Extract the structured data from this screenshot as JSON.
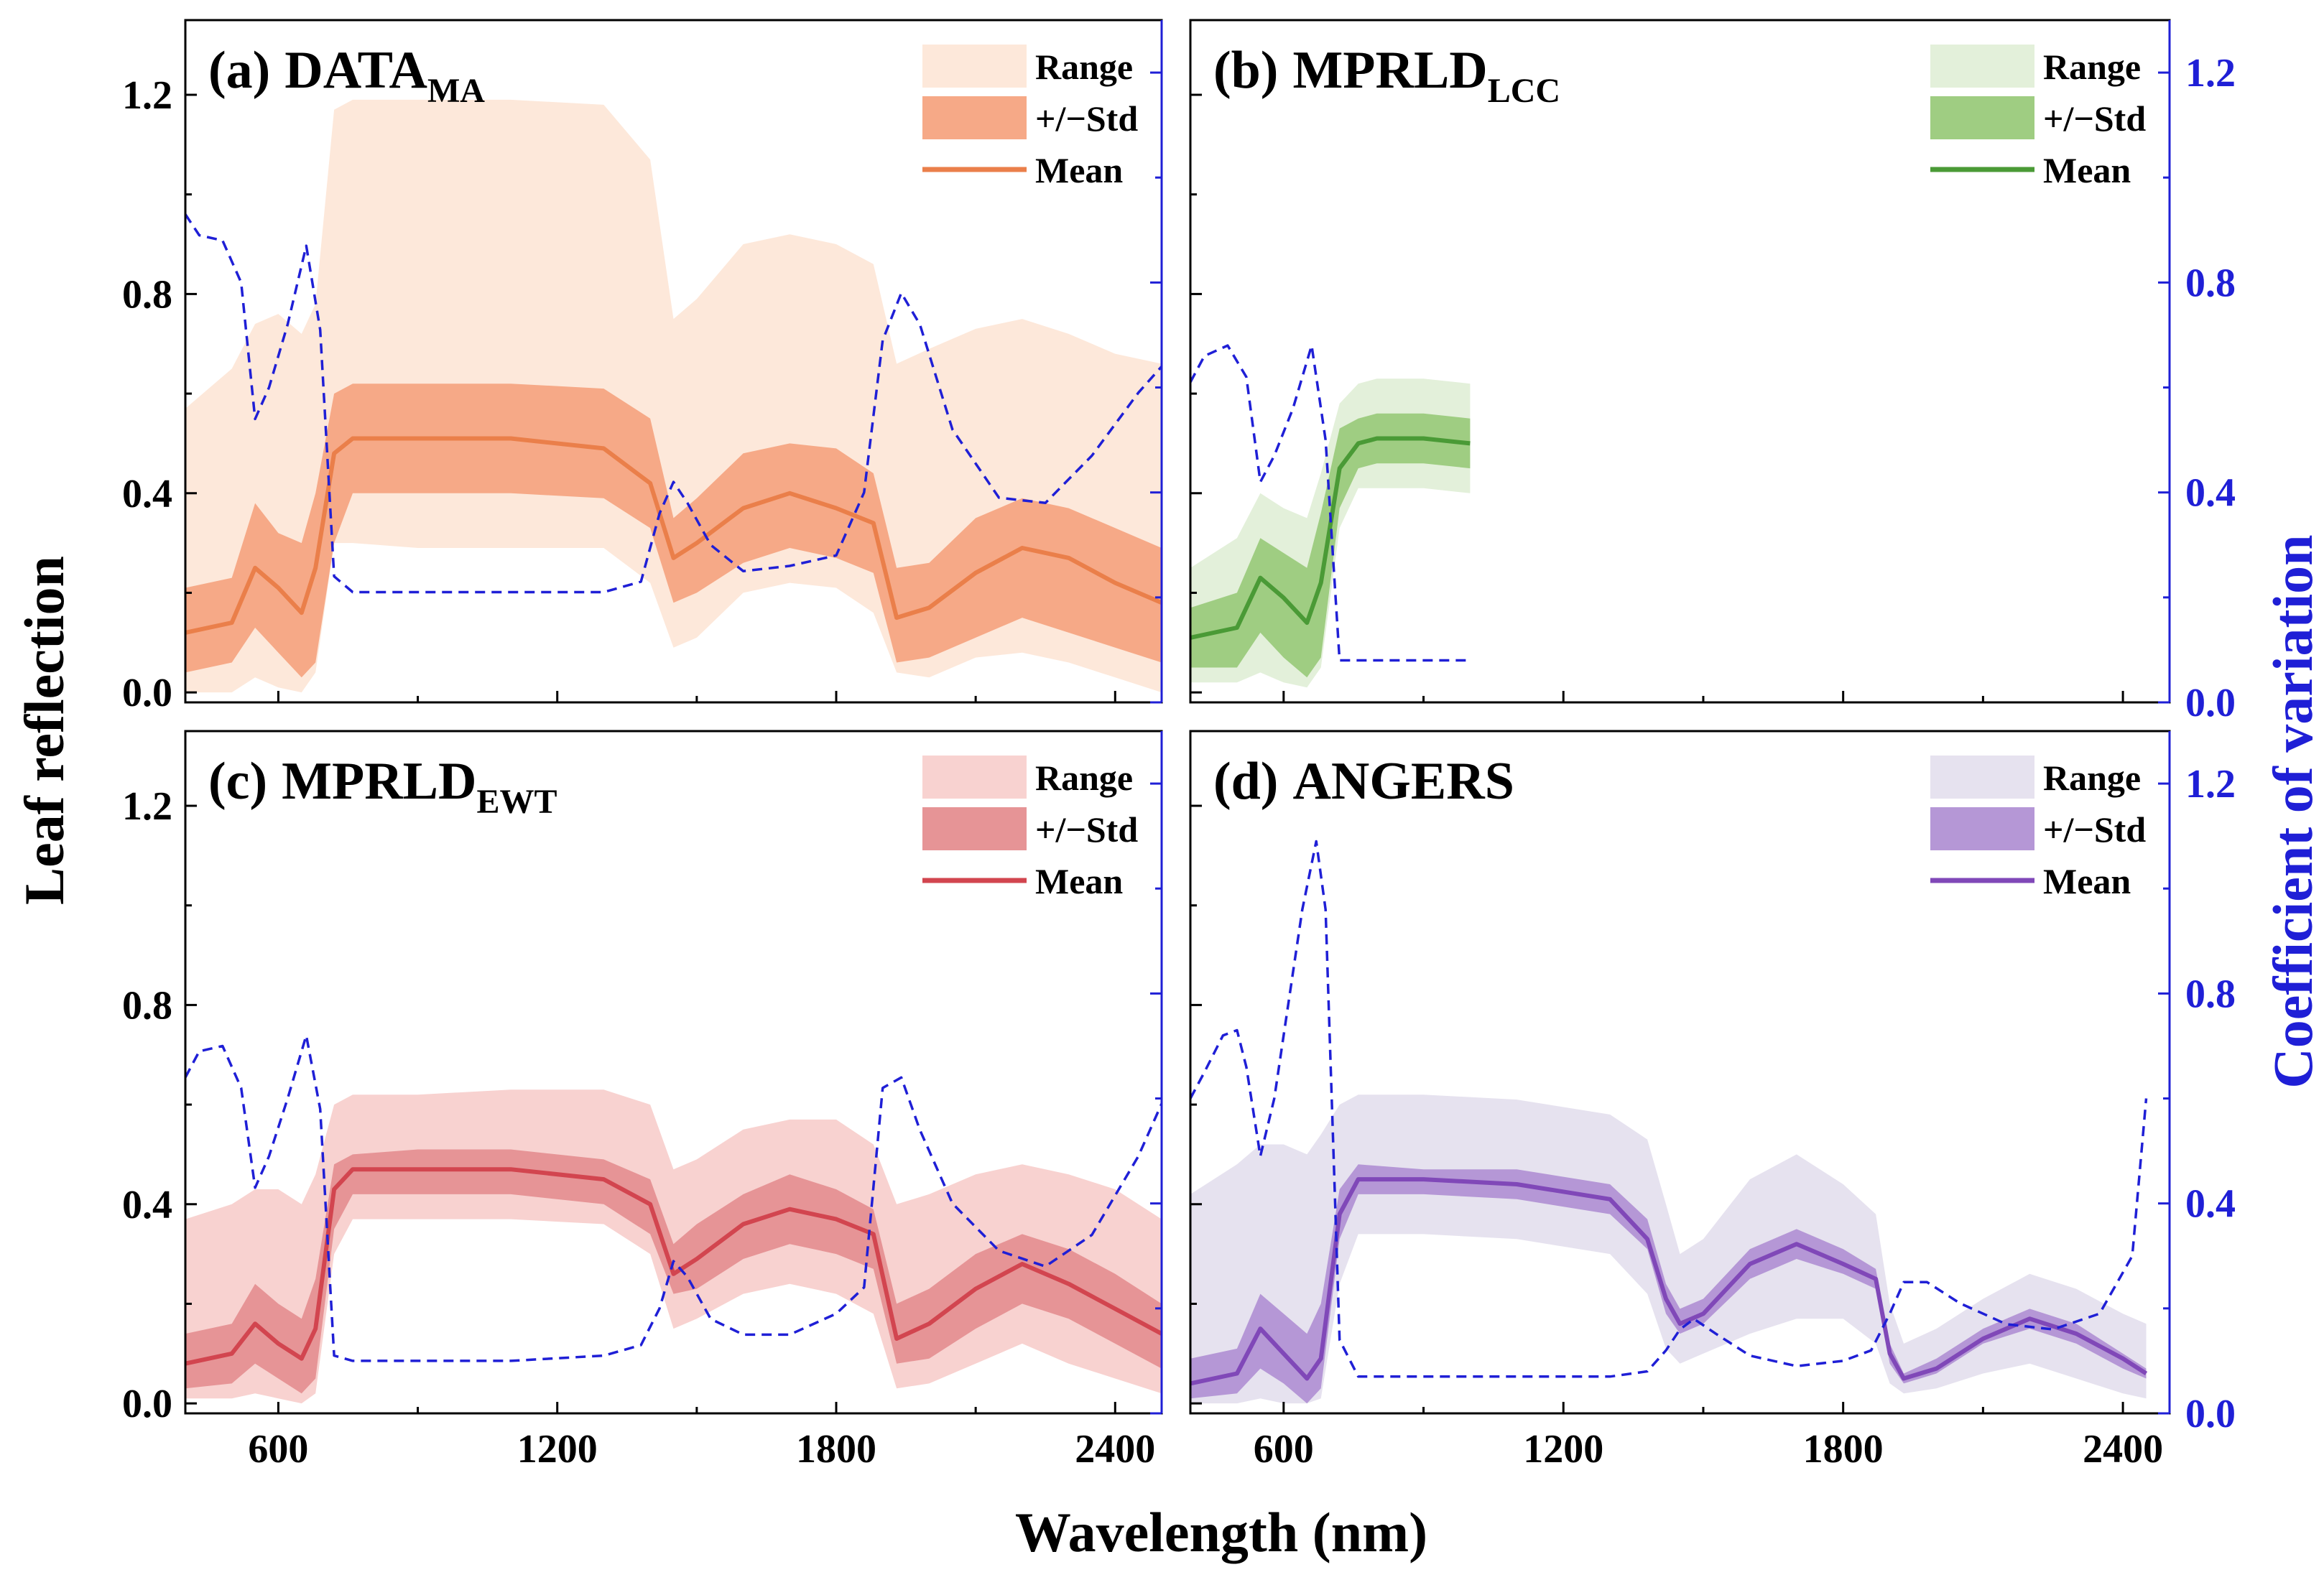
{
  "chart_data": {
    "type": "area",
    "xlabel": "Wavelength (nm)",
    "ylabel": "Leaf reflection",
    "ylabel_right": "Coefficient of variation",
    "xlim": [
      400,
      2500
    ],
    "ylim": [
      -0.02,
      1.35
    ],
    "ylim_right": [
      0,
      1.3
    ],
    "x_ticks": [
      600,
      1200,
      1800,
      2400
    ],
    "x_tick_labels": [
      "600",
      "1200",
      "1800",
      "2400"
    ],
    "y_ticks": [
      0.0,
      0.4,
      0.8,
      1.2
    ],
    "y_tick_labels": [
      "0.0",
      "0.4",
      "0.8",
      "1.2"
    ],
    "y_right_ticks": [
      0.0,
      0.4,
      0.8,
      1.2
    ],
    "y_right_tick_labels": [
      "0.0",
      "0.4",
      "0.8",
      "1.2"
    ],
    "legend_labels": [
      "Range",
      "+/−Std",
      "Mean"
    ],
    "cv_color": "#1f1fd6",
    "panels": [
      {
        "id": "a",
        "letter": "(a)",
        "name": "DATA",
        "subscript": "MA",
        "range_color": "#fde8da",
        "std_color": "#f6a987",
        "mean_color": "#ea7f4a",
        "x": [
          400,
          500,
          550,
          600,
          650,
          680,
          720,
          760,
          900,
          1100,
          1300,
          1400,
          1450,
          1500,
          1600,
          1700,
          1800,
          1880,
          1930,
          2000,
          2100,
          2200,
          2300,
          2400,
          2500
        ],
        "mean": [
          0.12,
          0.14,
          0.25,
          0.21,
          0.16,
          0.25,
          0.48,
          0.51,
          0.51,
          0.51,
          0.49,
          0.42,
          0.27,
          0.3,
          0.37,
          0.4,
          0.37,
          0.34,
          0.15,
          0.17,
          0.24,
          0.29,
          0.27,
          0.22,
          0.18
        ],
        "std_lo": [
          0.04,
          0.06,
          0.13,
          0.08,
          0.03,
          0.06,
          0.3,
          0.4,
          0.4,
          0.4,
          0.39,
          0.33,
          0.18,
          0.2,
          0.26,
          0.29,
          0.27,
          0.24,
          0.06,
          0.07,
          0.11,
          0.15,
          0.12,
          0.09,
          0.06
        ],
        "std_hi": [
          0.21,
          0.23,
          0.38,
          0.32,
          0.3,
          0.4,
          0.6,
          0.62,
          0.62,
          0.62,
          0.61,
          0.55,
          0.35,
          0.39,
          0.48,
          0.5,
          0.49,
          0.44,
          0.25,
          0.26,
          0.35,
          0.39,
          0.37,
          0.33,
          0.29
        ],
        "range_lo": [
          0.0,
          0.0,
          0.03,
          0.01,
          0.0,
          0.04,
          0.3,
          0.3,
          0.29,
          0.29,
          0.29,
          0.22,
          0.09,
          0.11,
          0.2,
          0.22,
          0.21,
          0.16,
          0.04,
          0.03,
          0.07,
          0.08,
          0.06,
          0.03,
          0.0
        ],
        "range_hi": [
          0.57,
          0.65,
          0.74,
          0.76,
          0.72,
          0.78,
          1.17,
          1.19,
          1.19,
          1.19,
          1.18,
          1.07,
          0.75,
          0.79,
          0.9,
          0.92,
          0.9,
          0.86,
          0.66,
          0.69,
          0.73,
          0.75,
          0.72,
          0.68,
          0.66
        ],
        "cv_x": [
          400,
          430,
          480,
          520,
          550,
          580,
          620,
          660,
          690,
          720,
          760,
          900,
          1100,
          1300,
          1380,
          1420,
          1450,
          1480,
          1530,
          1600,
          1700,
          1800,
          1860,
          1900,
          1940,
          1980,
          2050,
          2150,
          2250,
          2350,
          2450,
          2500
        ],
        "cv": [
          0.93,
          0.89,
          0.88,
          0.8,
          0.54,
          0.6,
          0.72,
          0.87,
          0.71,
          0.24,
          0.21,
          0.21,
          0.21,
          0.21,
          0.23,
          0.36,
          0.42,
          0.38,
          0.3,
          0.25,
          0.26,
          0.28,
          0.4,
          0.69,
          0.78,
          0.72,
          0.52,
          0.39,
          0.38,
          0.47,
          0.59,
          0.64
        ]
      },
      {
        "id": "b",
        "letter": "(b)",
        "name": "MPRLD",
        "subscript": "LCC",
        "range_color": "#e3f0da",
        "std_color": "#9fcd82",
        "mean_color": "#4a9a36",
        "x": [
          400,
          500,
          550,
          600,
          650,
          680,
          720,
          760,
          800,
          900,
          1000
        ],
        "mean": [
          0.11,
          0.13,
          0.23,
          0.19,
          0.14,
          0.22,
          0.45,
          0.5,
          0.51,
          0.51,
          0.5
        ],
        "std_lo": [
          0.05,
          0.05,
          0.12,
          0.07,
          0.03,
          0.07,
          0.37,
          0.45,
          0.46,
          0.46,
          0.45
        ],
        "std_hi": [
          0.17,
          0.2,
          0.31,
          0.28,
          0.25,
          0.36,
          0.53,
          0.55,
          0.56,
          0.56,
          0.55
        ],
        "range_lo": [
          0.02,
          0.02,
          0.04,
          0.02,
          0.01,
          0.05,
          0.33,
          0.41,
          0.41,
          0.41,
          0.4
        ],
        "range_hi": [
          0.25,
          0.31,
          0.4,
          0.37,
          0.35,
          0.44,
          0.58,
          0.62,
          0.63,
          0.63,
          0.62
        ],
        "cv_x": [
          400,
          430,
          480,
          520,
          550,
          580,
          620,
          660,
          690,
          720,
          760,
          1000
        ],
        "cv": [
          0.61,
          0.66,
          0.68,
          0.62,
          0.42,
          0.47,
          0.56,
          0.68,
          0.5,
          0.08,
          0.08,
          0.08
        ]
      },
      {
        "id": "c",
        "letter": "(c)",
        "name": "MPRLD",
        "subscript": "EWT",
        "range_color": "#f8d2d0",
        "std_color": "#e69496",
        "mean_color": "#d2454f",
        "x": [
          400,
          500,
          550,
          600,
          650,
          680,
          720,
          760,
          900,
          1100,
          1300,
          1400,
          1450,
          1500,
          1600,
          1700,
          1800,
          1880,
          1930,
          2000,
          2100,
          2200,
          2300,
          2400,
          2500
        ],
        "mean": [
          0.08,
          0.1,
          0.16,
          0.12,
          0.09,
          0.15,
          0.43,
          0.47,
          0.47,
          0.47,
          0.45,
          0.4,
          0.26,
          0.29,
          0.36,
          0.39,
          0.37,
          0.34,
          0.13,
          0.16,
          0.23,
          0.28,
          0.24,
          0.19,
          0.14
        ],
        "std_lo": [
          0.03,
          0.04,
          0.08,
          0.05,
          0.02,
          0.05,
          0.35,
          0.42,
          0.42,
          0.42,
          0.4,
          0.34,
          0.22,
          0.23,
          0.29,
          0.32,
          0.3,
          0.27,
          0.08,
          0.09,
          0.15,
          0.2,
          0.17,
          0.12,
          0.07
        ],
        "std_hi": [
          0.14,
          0.16,
          0.24,
          0.2,
          0.17,
          0.25,
          0.48,
          0.5,
          0.51,
          0.51,
          0.49,
          0.45,
          0.32,
          0.36,
          0.42,
          0.46,
          0.43,
          0.39,
          0.2,
          0.23,
          0.3,
          0.34,
          0.31,
          0.26,
          0.2
        ],
        "range_lo": [
          0.01,
          0.01,
          0.02,
          0.01,
          0.0,
          0.02,
          0.3,
          0.37,
          0.37,
          0.37,
          0.36,
          0.3,
          0.15,
          0.17,
          0.22,
          0.24,
          0.22,
          0.18,
          0.03,
          0.04,
          0.08,
          0.12,
          0.08,
          0.05,
          0.02
        ],
        "range_hi": [
          0.37,
          0.4,
          0.43,
          0.43,
          0.4,
          0.46,
          0.6,
          0.62,
          0.62,
          0.63,
          0.63,
          0.6,
          0.47,
          0.49,
          0.55,
          0.57,
          0.57,
          0.52,
          0.4,
          0.42,
          0.46,
          0.48,
          0.46,
          0.43,
          0.37
        ],
        "cv_x": [
          400,
          430,
          480,
          520,
          550,
          580,
          620,
          660,
          690,
          720,
          760,
          900,
          1100,
          1300,
          1380,
          1420,
          1450,
          1480,
          1530,
          1600,
          1700,
          1800,
          1860,
          1900,
          1940,
          1980,
          2050,
          2150,
          2250,
          2350,
          2450,
          2500
        ],
        "cv": [
          0.64,
          0.69,
          0.7,
          0.62,
          0.43,
          0.49,
          0.6,
          0.72,
          0.58,
          0.11,
          0.1,
          0.1,
          0.1,
          0.11,
          0.13,
          0.2,
          0.29,
          0.26,
          0.18,
          0.15,
          0.15,
          0.19,
          0.24,
          0.62,
          0.64,
          0.54,
          0.4,
          0.31,
          0.28,
          0.34,
          0.49,
          0.59
        ]
      },
      {
        "id": "d",
        "letter": "(d)",
        "name": "ANGERS",
        "subscript": "",
        "range_color": "#e6e2ef",
        "std_color": "#b597d6",
        "mean_color": "#8048b8",
        "x": [
          400,
          500,
          550,
          600,
          650,
          680,
          720,
          760,
          900,
          1100,
          1300,
          1380,
          1420,
          1450,
          1500,
          1600,
          1700,
          1800,
          1870,
          1900,
          1930,
          2000,
          2100,
          2200,
          2300,
          2400,
          2450
        ],
        "mean": [
          0.04,
          0.06,
          0.15,
          0.1,
          0.05,
          0.09,
          0.38,
          0.45,
          0.45,
          0.44,
          0.41,
          0.33,
          0.21,
          0.16,
          0.18,
          0.28,
          0.32,
          0.28,
          0.25,
          0.1,
          0.05,
          0.07,
          0.13,
          0.17,
          0.14,
          0.09,
          0.06
        ],
        "std_lo": [
          0.01,
          0.02,
          0.07,
          0.04,
          0.0,
          0.03,
          0.33,
          0.42,
          0.42,
          0.41,
          0.38,
          0.31,
          0.18,
          0.14,
          0.16,
          0.25,
          0.29,
          0.26,
          0.23,
          0.08,
          0.04,
          0.06,
          0.12,
          0.15,
          0.12,
          0.07,
          0.05
        ],
        "std_hi": [
          0.09,
          0.11,
          0.22,
          0.18,
          0.14,
          0.2,
          0.43,
          0.48,
          0.47,
          0.47,
          0.44,
          0.37,
          0.24,
          0.19,
          0.21,
          0.31,
          0.35,
          0.31,
          0.27,
          0.12,
          0.06,
          0.09,
          0.15,
          0.19,
          0.16,
          0.1,
          0.07
        ],
        "range_lo": [
          0.0,
          0.0,
          0.01,
          0.0,
          0.0,
          0.01,
          0.24,
          0.34,
          0.34,
          0.33,
          0.3,
          0.22,
          0.11,
          0.08,
          0.1,
          0.14,
          0.17,
          0.17,
          0.12,
          0.04,
          0.02,
          0.03,
          0.06,
          0.08,
          0.05,
          0.02,
          0.01
        ],
        "range_hi": [
          0.42,
          0.48,
          0.52,
          0.52,
          0.5,
          0.54,
          0.6,
          0.62,
          0.62,
          0.61,
          0.58,
          0.53,
          0.4,
          0.3,
          0.33,
          0.45,
          0.5,
          0.44,
          0.38,
          0.2,
          0.12,
          0.15,
          0.21,
          0.26,
          0.23,
          0.18,
          0.16
        ],
        "cv_x": [
          400,
          430,
          470,
          500,
          520,
          550,
          580,
          610,
          640,
          670,
          690,
          720,
          760,
          900,
          1100,
          1300,
          1380,
          1420,
          1450,
          1480,
          1530,
          1600,
          1700,
          1800,
          1860,
          1900,
          1930,
          1980,
          2050,
          2150,
          2250,
          2350,
          2420,
          2450
        ],
        "cv": [
          0.6,
          0.65,
          0.72,
          0.73,
          0.66,
          0.49,
          0.6,
          0.78,
          0.96,
          1.09,
          0.96,
          0.14,
          0.07,
          0.07,
          0.07,
          0.07,
          0.08,
          0.12,
          0.16,
          0.18,
          0.15,
          0.11,
          0.09,
          0.1,
          0.12,
          0.19,
          0.25,
          0.25,
          0.21,
          0.17,
          0.16,
          0.19,
          0.3,
          0.6
        ]
      }
    ]
  }
}
